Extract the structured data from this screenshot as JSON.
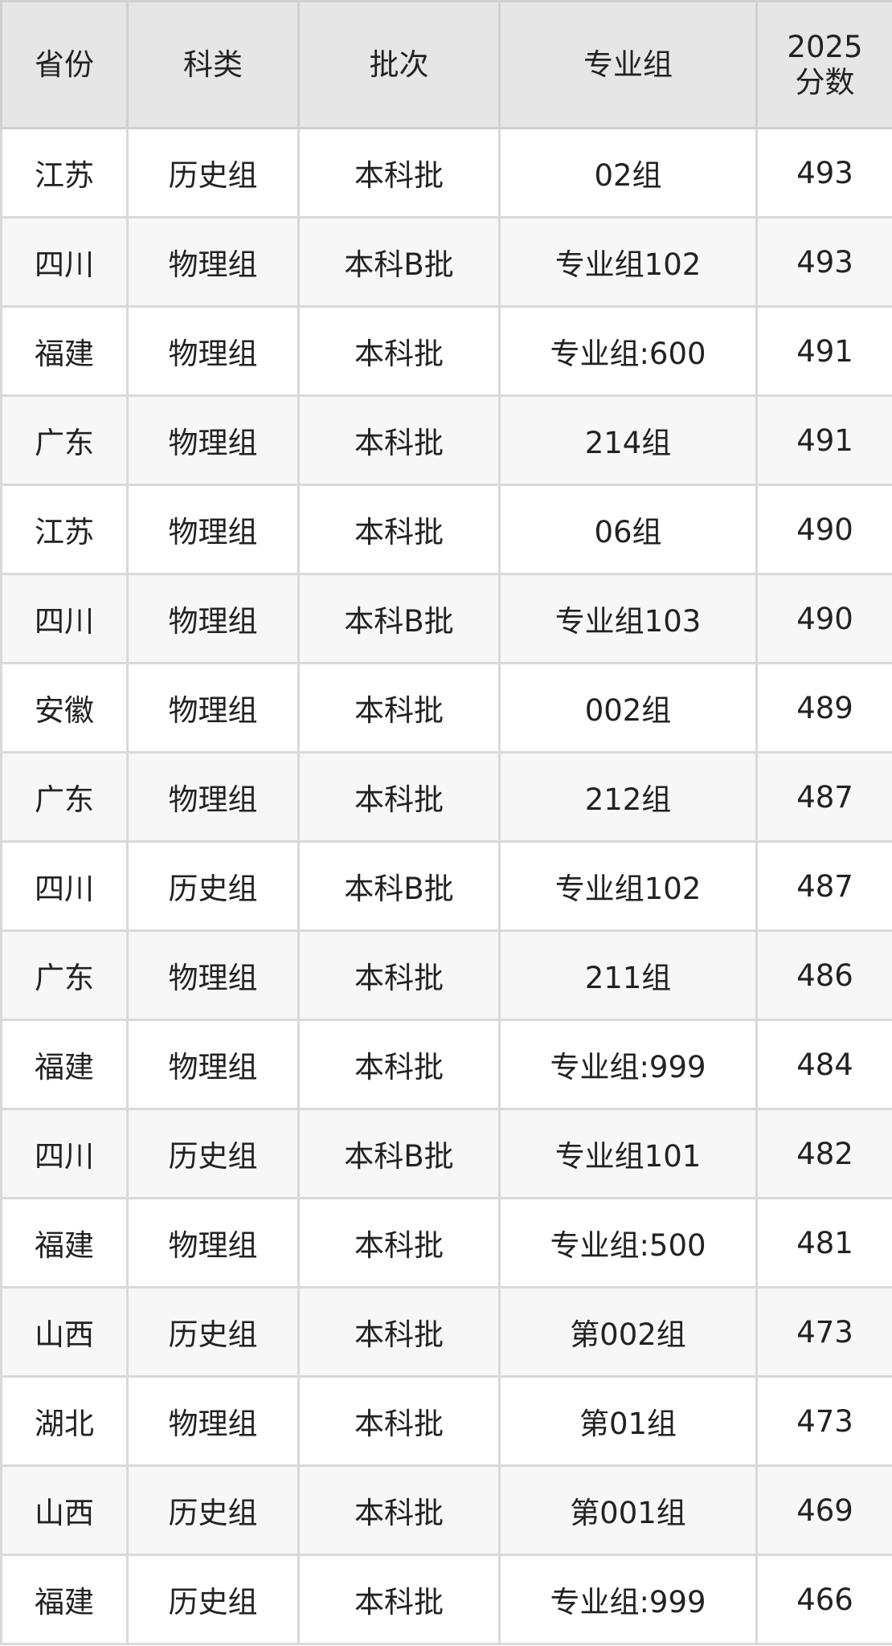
{
  "headers": [
    "省份",
    "科类",
    "批次",
    "专业组",
    "2025\n分数"
  ],
  "header_score_line1": "2025",
  "header_score_line2": "分数",
  "rows": [
    [
      "江苏",
      "历史组",
      "本科批",
      "02组",
      "493"
    ],
    [
      "四川",
      "物理组",
      "本科B批",
      "专业组102",
      "493"
    ],
    [
      "福建",
      "物理组",
      "本科批",
      "专业组:600",
      "491"
    ],
    [
      "广东",
      "物理组",
      "本科批",
      "214组",
      "491"
    ],
    [
      "江苏",
      "物理组",
      "本科批",
      "06组",
      "490"
    ],
    [
      "四川",
      "物理组",
      "本科B批",
      "专业组103",
      "490"
    ],
    [
      "安徽",
      "物理组",
      "本科批",
      "002组",
      "489"
    ],
    [
      "广东",
      "物理组",
      "本科批",
      "212组",
      "487"
    ],
    [
      "四川",
      "历史组",
      "本科B批",
      "专业组102",
      "487"
    ],
    [
      "广东",
      "物理组",
      "本科批",
      "211组",
      "486"
    ],
    [
      "福建",
      "物理组",
      "本科批",
      "专业组:999",
      "484"
    ],
    [
      "四川",
      "历史组",
      "本科B批",
      "专业组101",
      "482"
    ],
    [
      "福建",
      "物理组",
      "本科批",
      "专业组:500",
      "481"
    ],
    [
      "山西",
      "历史组",
      "本科批",
      "第002组",
      "473"
    ],
    [
      "湖北",
      "物理组",
      "本科批",
      "第01组",
      "473"
    ],
    [
      "山西",
      "历史组",
      "本科批",
      "第001组",
      "469"
    ],
    [
      "福建",
      "历史组",
      "本科批",
      "专业组:999",
      "466"
    ]
  ]
}
